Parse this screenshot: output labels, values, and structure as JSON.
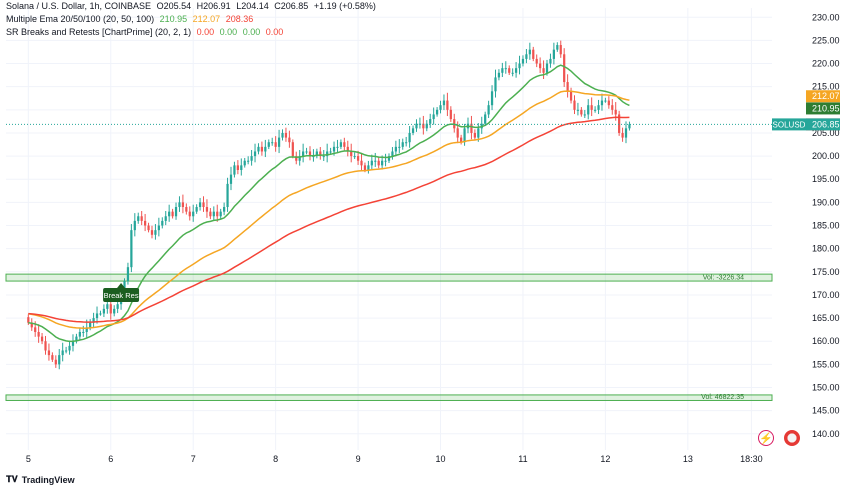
{
  "legend": {
    "title": "Solana / U.S. Dollar, 1h, COINBASE",
    "o_label": "O",
    "o": "205.54",
    "h_label": "H",
    "h": "206.91",
    "l_label": "L",
    "l": "204.14",
    "c_label": "C",
    "c": "206.85",
    "change": "+1.19 (+0.58%)",
    "ema_title": "Multiple Ema 20/50/100 (20, 50, 100)",
    "ema20": "210.95",
    "ema50": "212.07",
    "ema100": "208.36",
    "sr_title": "SR Breaks and Retests [ChartPrime] (20, 2, 1)",
    "sr_vals": [
      "0.00",
      "0.00",
      "0.00",
      "0.00"
    ]
  },
  "footer": {
    "brand": "TradingView"
  },
  "icons": {
    "bolt": "lightning-icon",
    "flag": "us-flag-icon"
  },
  "chart_data": {
    "type": "candlestick",
    "symbol": "SOLUSD",
    "last_price": 206.85,
    "ylim": [
      136.5,
      232
    ],
    "y_ticks": [
      140,
      145,
      150,
      155,
      160,
      165,
      170,
      175,
      180,
      185,
      190,
      195,
      200,
      205,
      210,
      215,
      220,
      225,
      230
    ],
    "x_ticks": [
      {
        "label": "5",
        "hour": 0
      },
      {
        "label": "6",
        "hour": 24
      },
      {
        "label": "7",
        "hour": 48
      },
      {
        "label": "8",
        "hour": 72
      },
      {
        "label": "9",
        "hour": 96
      },
      {
        "label": "10",
        "hour": 120
      },
      {
        "label": "11",
        "hour": 144
      },
      {
        "label": "12",
        "hour": 168
      },
      {
        "label": "13",
        "hour": 192
      },
      {
        "label": "18:30",
        "hour": 210.5
      }
    ],
    "xlim": [
      -6.5,
      216.5
    ],
    "closes": [
      164,
      163,
      162,
      161,
      160,
      158,
      157,
      156,
      155,
      157,
      158,
      158,
      159,
      160,
      161,
      162,
      162,
      163,
      164,
      165,
      166,
      166,
      167,
      168,
      166,
      167,
      168,
      170,
      173,
      176,
      184,
      186,
      187,
      186,
      185,
      184,
      183,
      184,
      185,
      186,
      187,
      188,
      187,
      189,
      190,
      189,
      188,
      187,
      188,
      189,
      190,
      189,
      188,
      187,
      188,
      187,
      188,
      189,
      194,
      196,
      198,
      197,
      198,
      199,
      199,
      200,
      201,
      202,
      201,
      202,
      203,
      203,
      202,
      204,
      205,
      204,
      203,
      200,
      199,
      200,
      201,
      201,
      200,
      200,
      201,
      200,
      200,
      201,
      201,
      202,
      202,
      203,
      202,
      201,
      200,
      200,
      199,
      198,
      197,
      198,
      199,
      199,
      198,
      199,
      199,
      200,
      201,
      202,
      202,
      203,
      203,
      205,
      206,
      207,
      207,
      206,
      207,
      208,
      209,
      210,
      211,
      212,
      210,
      208,
      206,
      204,
      203,
      206,
      207,
      205,
      204,
      206,
      207,
      209,
      211,
      214,
      217,
      218,
      219,
      219,
      218,
      218,
      219,
      220,
      221,
      222,
      223,
      221,
      220,
      219,
      218,
      220,
      221,
      223,
      224,
      222,
      216,
      214,
      212,
      210,
      210,
      209,
      209,
      211,
      210,
      210,
      211,
      212,
      212,
      211,
      210,
      209,
      205,
      204,
      206,
      206.85
    ],
    "ema_series": [
      {
        "name": "EMA 20",
        "color": "#4caf50",
        "last": 210.95
      },
      {
        "name": "EMA 50",
        "color": "#f5a623",
        "last": 212.07
      },
      {
        "name": "EMA 100",
        "color": "#f44336",
        "last": 208.36
      }
    ],
    "zones": [
      {
        "from": 173.0,
        "to": 174.5,
        "color": "#4caf50",
        "label": "Vol: -3226.34"
      },
      {
        "from": 147.2,
        "to": 148.4,
        "color": "#4caf50",
        "label": "Vol: 46822.35"
      }
    ],
    "annotation": {
      "text": "Break Res",
      "hour": 27,
      "price": 170
    },
    "up_color": "#26a69a",
    "down_color": "#ef5350",
    "price_tags": [
      {
        "value": "212.07",
        "color": "#f5a623",
        "price": 212.07
      },
      {
        "value": "210.95",
        "color": "#2e7d32",
        "price": 210.95
      },
      {
        "value": "208.36",
        "color": "#e53935",
        "price": 208.36
      },
      {
        "value": "SOLUSD",
        "color": "#26a69a",
        "price": 206.85,
        "kind": "symbol"
      },
      {
        "value": "206.85",
        "color": "#26a69a",
        "price": 206.85
      }
    ]
  }
}
